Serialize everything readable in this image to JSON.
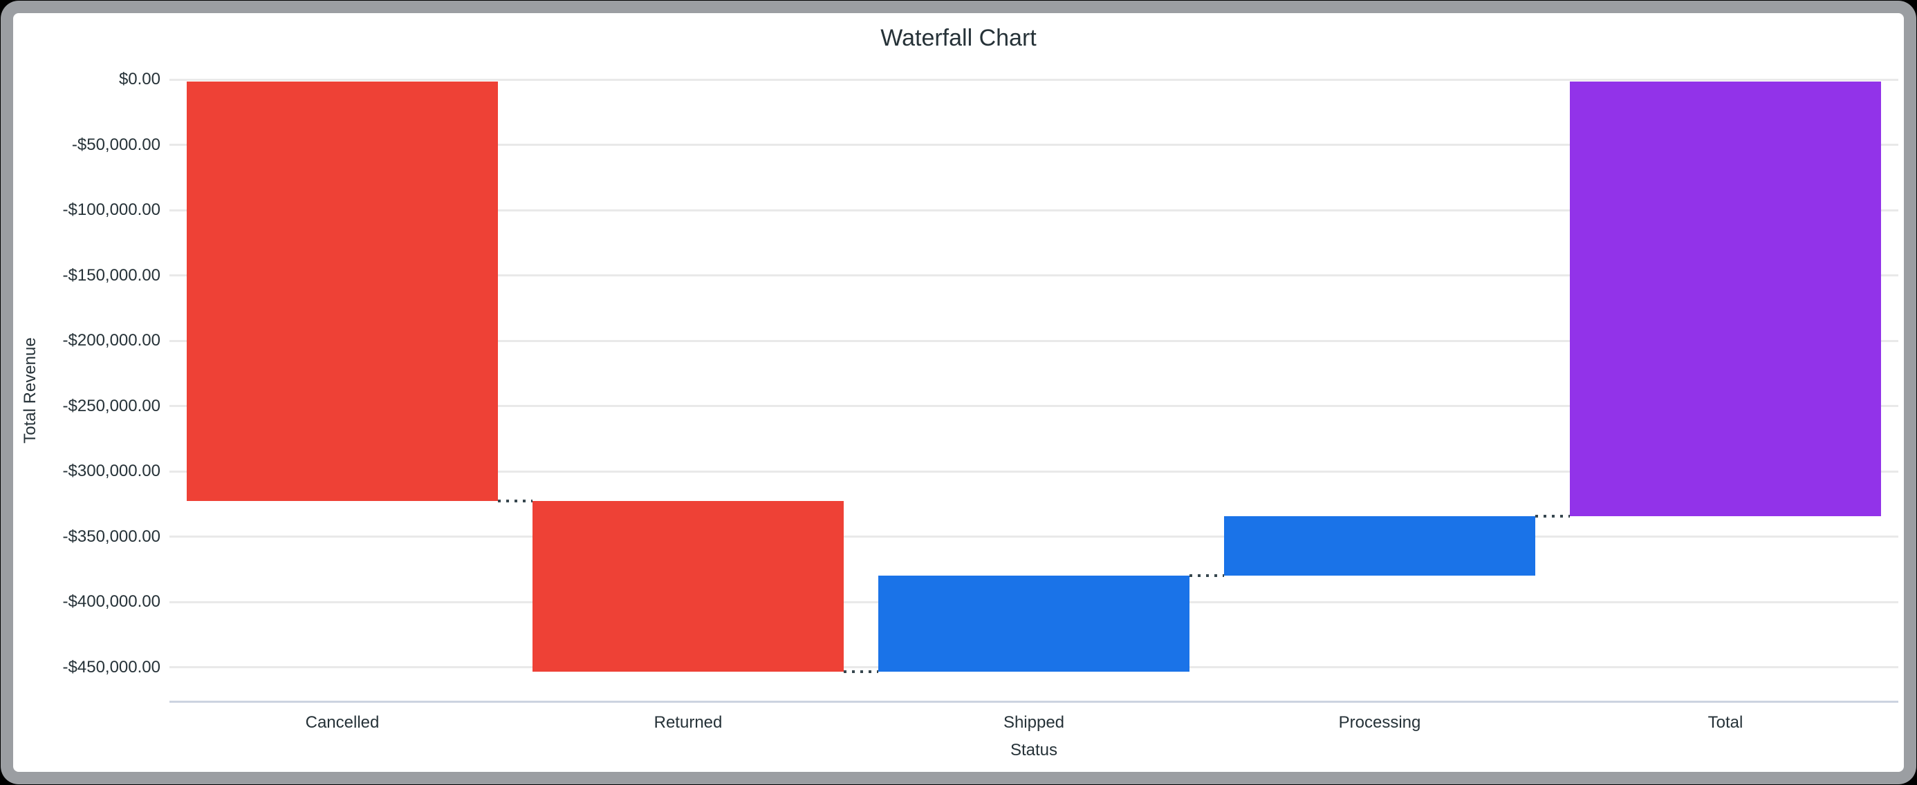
{
  "window": {
    "background_color": "#000000",
    "frame_color": "#9b9ea2",
    "card_color": "#ffffff"
  },
  "chart_data": {
    "type": "waterfall",
    "title": "Waterfall Chart",
    "xlabel": "Status",
    "ylabel": "Total Revenue",
    "categories": [
      "Cancelled",
      "Returned",
      "Shipped",
      "Processing",
      "Total"
    ],
    "bars": [
      {
        "label": "Cancelled",
        "start": 0,
        "end": -323000,
        "delta": -323000,
        "color": "#EE4136",
        "role": "decrease"
      },
      {
        "label": "Returned",
        "start": -323000,
        "end": -453500,
        "delta": -130500,
        "color": "#EE4136",
        "role": "decrease"
      },
      {
        "label": "Shipped",
        "start": -453500,
        "end": -380000,
        "delta": 73500,
        "color": "#1A73E8",
        "role": "increase"
      },
      {
        "label": "Processing",
        "start": -380000,
        "end": -334500,
        "delta": 45500,
        "color": "#1A73E8",
        "role": "increase"
      },
      {
        "label": "Total",
        "start": -334500,
        "end": 0,
        "delta": -334500,
        "color": "#9233E9",
        "role": "total"
      }
    ],
    "y_ticks": [
      {
        "value": 0,
        "label": "$0.00"
      },
      {
        "value": -50000,
        "label": "-$50,000.00"
      },
      {
        "value": -100000,
        "label": "-$100,000.00"
      },
      {
        "value": -150000,
        "label": "-$150,000.00"
      },
      {
        "value": -200000,
        "label": "-$200,000.00"
      },
      {
        "value": -250000,
        "label": "-$250,000.00"
      },
      {
        "value": -300000,
        "label": "-$300,000.00"
      },
      {
        "value": -350000,
        "label": "-$350,000.00"
      },
      {
        "value": -400000,
        "label": "-$400,000.00"
      },
      {
        "value": -450000,
        "label": "-$450,000.00"
      }
    ],
    "ylim": [
      0,
      -476190
    ],
    "grid": true,
    "legend": false,
    "connector_color": "#37474f",
    "grid_color": "#e9e9e9",
    "axis_line_color": "#ccd3e0",
    "text_color": "#263238"
  }
}
